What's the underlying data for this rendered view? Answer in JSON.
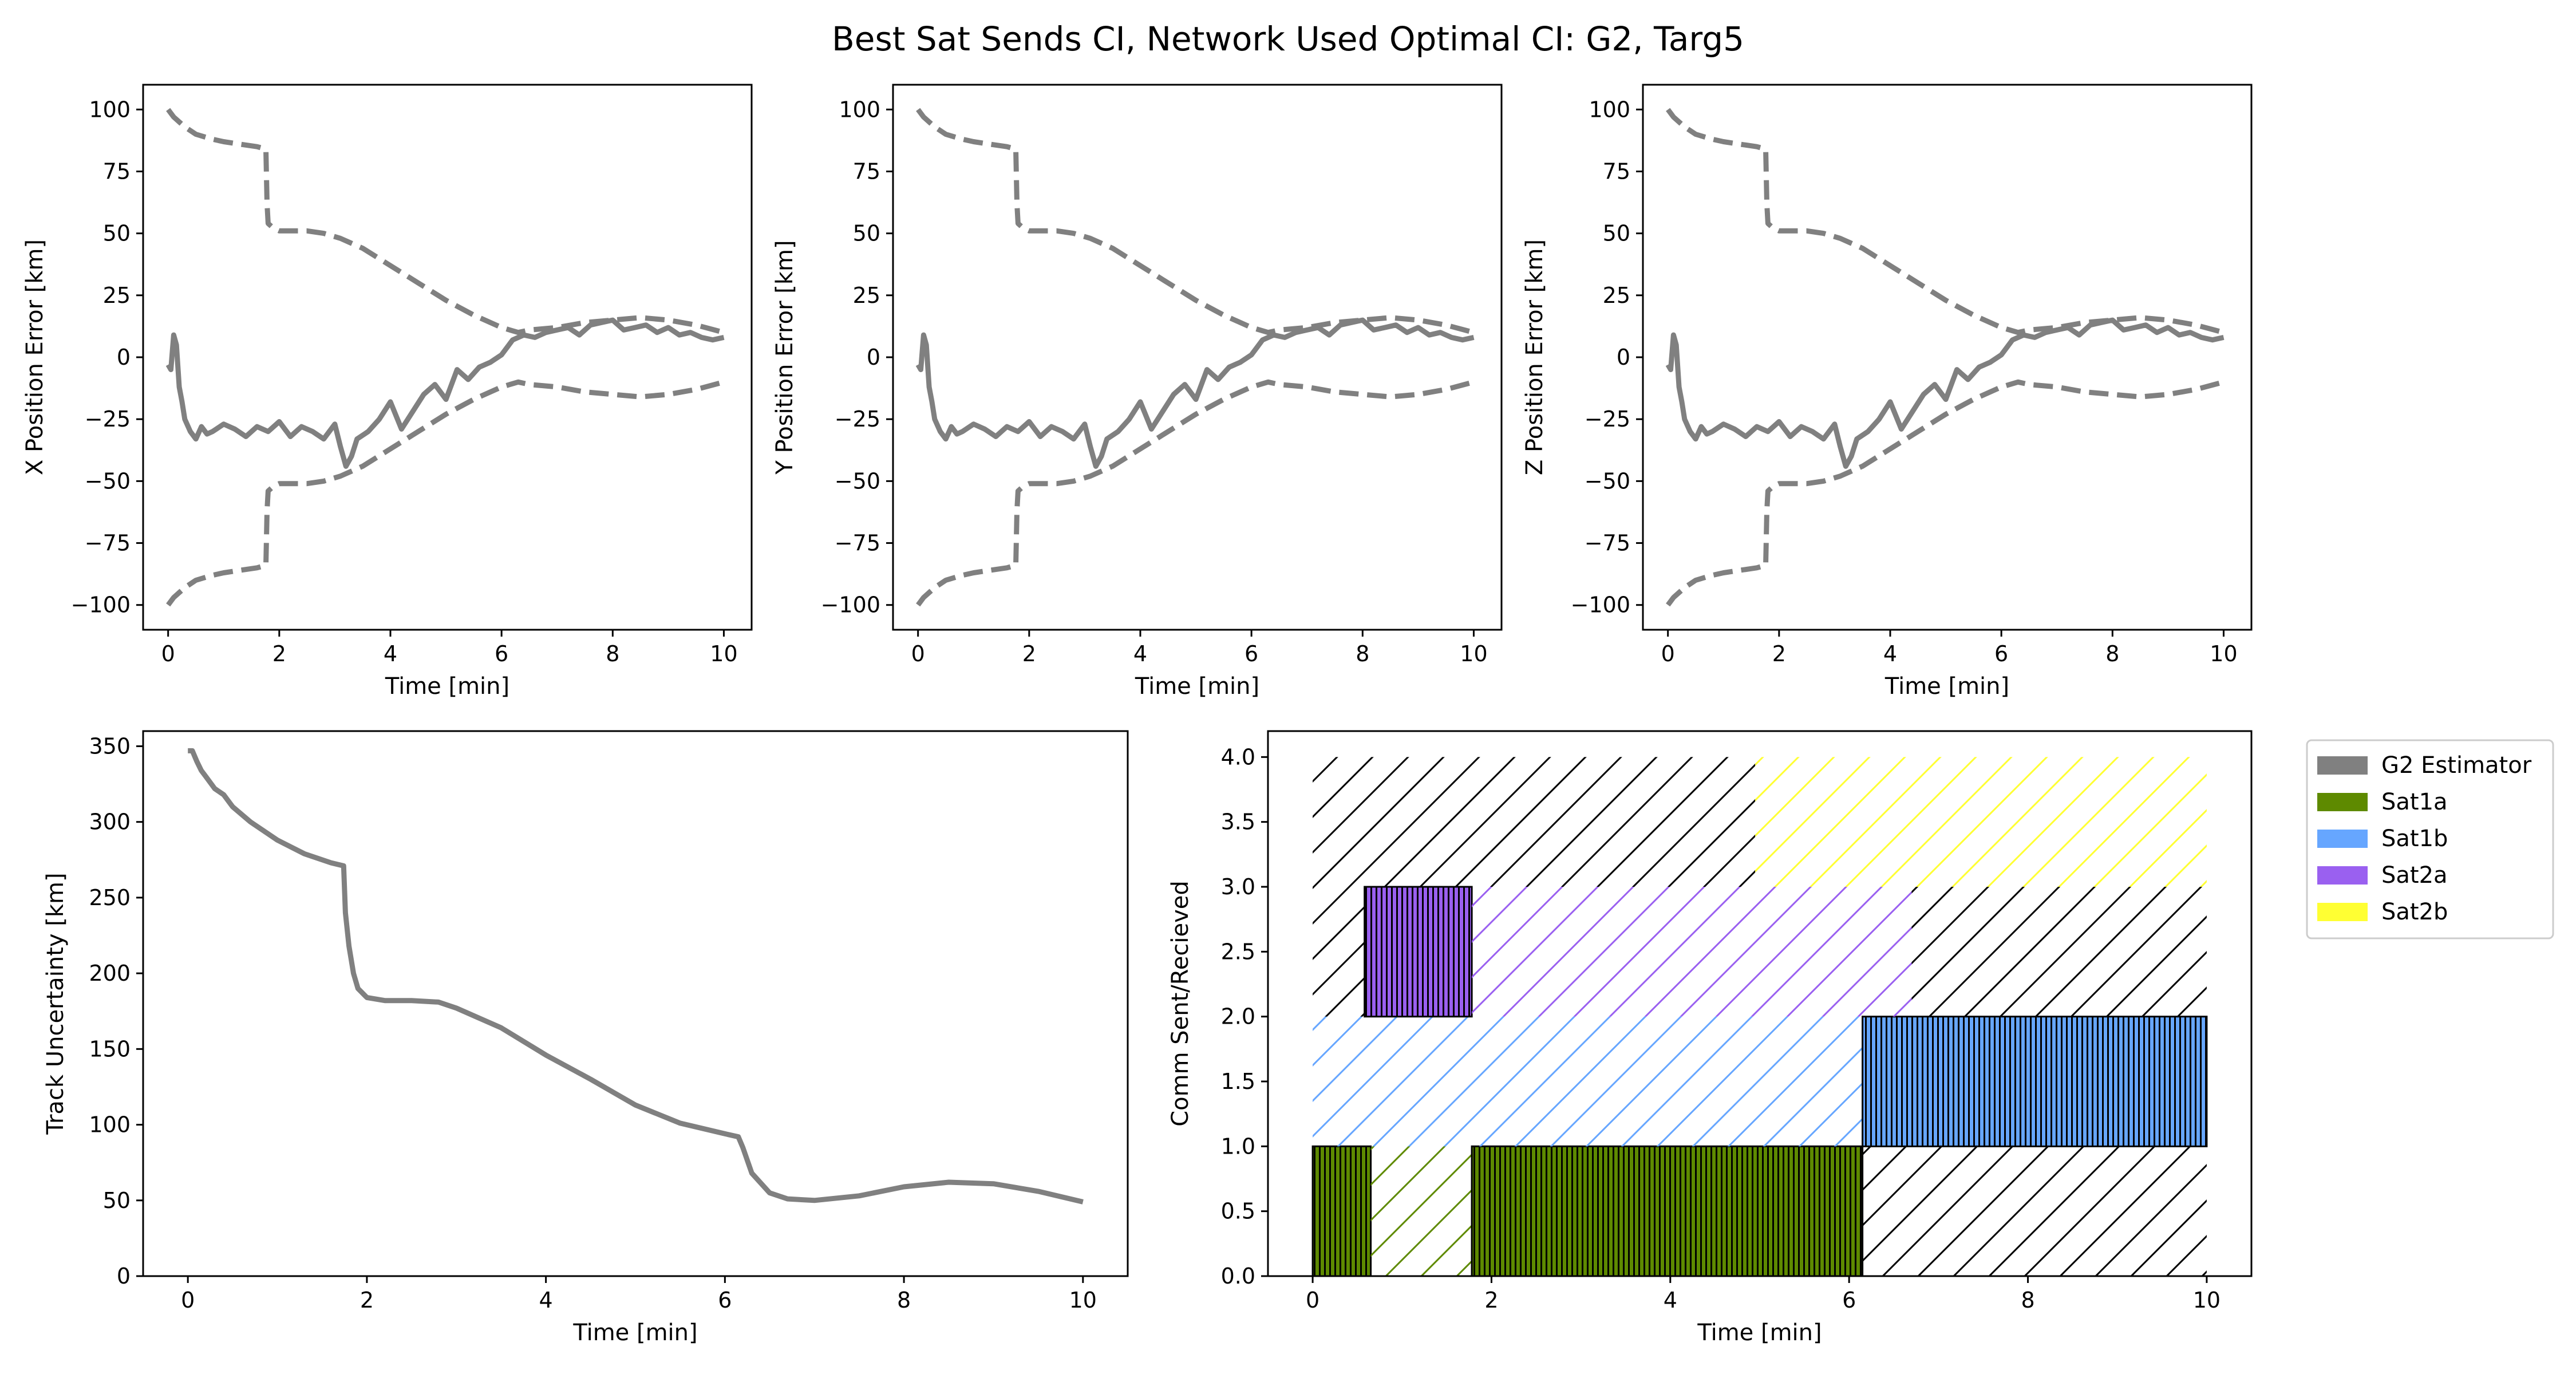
{
  "suptitle": "Best Sat Sends CI, Network Used Optimal CI: G2, Targ5",
  "colors": {
    "estimator": "#808080",
    "Sat1a": "#5e8a00",
    "Sat1b": "#66a6ff",
    "Sat2a": "#9a60f0",
    "Sat2b": "#ffff33",
    "hatch": "#000000"
  },
  "chart_data": [
    {
      "id": "x-error",
      "type": "line",
      "title": "",
      "xlabel": "Time [min]",
      "ylabel": "X Position Error [km]",
      "xlim": [
        -0.45,
        10.5
      ],
      "ylim": [
        -110,
        110
      ],
      "xticks": [
        0,
        2,
        4,
        6,
        8,
        10
      ],
      "yticks": [
        -100,
        -75,
        -50,
        -25,
        0,
        25,
        50,
        75,
        100
      ],
      "series": [
        {
          "style": "solid",
          "x": [
            0,
            0.05,
            0.1,
            0.15,
            0.2,
            0.25,
            0.3,
            0.4,
            0.5,
            0.6,
            0.7,
            0.8,
            1.0,
            1.2,
            1.4,
            1.6,
            1.8,
            2.0,
            2.2,
            2.4,
            2.6,
            2.8,
            3.0,
            3.1,
            3.2,
            3.3,
            3.4,
            3.6,
            3.8,
            4.0,
            4.2,
            4.4,
            4.6,
            4.8,
            5.0,
            5.2,
            5.4,
            5.6,
            5.8,
            6.0,
            6.2,
            6.4,
            6.6,
            6.8,
            7.0,
            7.2,
            7.4,
            7.6,
            7.8,
            8.0,
            8.2,
            8.4,
            8.6,
            8.8,
            9.0,
            9.2,
            9.4,
            9.6,
            9.8,
            10.0
          ],
          "y": [
            -3,
            -5,
            9,
            5,
            -12,
            -18,
            -25,
            -30,
            -33,
            -28,
            -31,
            -30,
            -27,
            -29,
            -32,
            -28,
            -30,
            -26,
            -32,
            -28,
            -30,
            -33,
            -27,
            -36,
            -44,
            -40,
            -33,
            -30,
            -25,
            -18,
            -29,
            -22,
            -15,
            -11,
            -17,
            -5,
            -9,
            -4,
            -2,
            1,
            7,
            9,
            8,
            10,
            11,
            12,
            9,
            13,
            14,
            15,
            11,
            12,
            13,
            10,
            12,
            9,
            10,
            8,
            7,
            8
          ]
        },
        {
          "style": "dashed",
          "x": [
            0,
            0.1,
            0.3,
            0.5,
            0.8,
            1.0,
            1.3,
            1.6,
            1.76,
            1.78,
            1.8,
            1.9,
            2.0,
            2.2,
            2.5,
            2.8,
            3.1,
            3.5,
            4.0,
            4.5,
            5.0,
            5.5,
            6.0,
            6.3,
            6.5,
            7.0,
            7.5,
            8.0,
            8.5,
            9.0,
            9.5,
            10.0
          ],
          "y": [
            100,
            97,
            93,
            90,
            88,
            87,
            86,
            85,
            84,
            62,
            54,
            52,
            51,
            51,
            51,
            50,
            48,
            44,
            37,
            30,
            23,
            17,
            12,
            10,
            11,
            12,
            14,
            15,
            16,
            15,
            13,
            10
          ]
        },
        {
          "style": "dashed",
          "x": [
            0,
            0.1,
            0.3,
            0.5,
            0.8,
            1.0,
            1.3,
            1.6,
            1.76,
            1.78,
            1.8,
            1.9,
            2.0,
            2.2,
            2.5,
            2.8,
            3.1,
            3.5,
            4.0,
            4.5,
            5.0,
            5.5,
            6.0,
            6.3,
            6.5,
            7.0,
            7.5,
            8.0,
            8.5,
            9.0,
            9.5,
            10.0
          ],
          "y": [
            -100,
            -97,
            -93,
            -90,
            -88,
            -87,
            -86,
            -85,
            -84,
            -62,
            -54,
            -52,
            -51,
            -51,
            -51,
            -50,
            -48,
            -44,
            -37,
            -30,
            -23,
            -17,
            -12,
            -10,
            -11,
            -12,
            -14,
            -15,
            -16,
            -15,
            -13,
            -10
          ]
        }
      ]
    },
    {
      "id": "y-error",
      "type": "line",
      "title": "",
      "xlabel": "Time [min]",
      "ylabel": "Y Position Error [km]",
      "xlim": [
        -0.45,
        10.5
      ],
      "ylim": [
        -110,
        110
      ],
      "xticks": [
        0,
        2,
        4,
        6,
        8,
        10
      ],
      "yticks": [
        -100,
        -75,
        -50,
        -25,
        0,
        25,
        50,
        75,
        100
      ],
      "series": [
        {
          "style": "solid",
          "x": [
            0,
            0.05,
            0.1,
            0.15,
            0.2,
            0.25,
            0.3,
            0.4,
            0.5,
            0.6,
            0.7,
            0.8,
            1.0,
            1.2,
            1.4,
            1.6,
            1.8,
            2.0,
            2.2,
            2.4,
            2.6,
            2.8,
            3.0,
            3.1,
            3.2,
            3.3,
            3.4,
            3.6,
            3.8,
            4.0,
            4.2,
            4.4,
            4.6,
            4.8,
            5.0,
            5.2,
            5.4,
            5.6,
            5.8,
            6.0,
            6.2,
            6.4,
            6.6,
            6.8,
            7.0,
            7.2,
            7.4,
            7.6,
            7.8,
            8.0,
            8.2,
            8.4,
            8.6,
            8.8,
            9.0,
            9.2,
            9.4,
            9.6,
            9.8,
            10.0
          ],
          "y": [
            -3,
            -5,
            9,
            5,
            -12,
            -18,
            -25,
            -30,
            -33,
            -28,
            -31,
            -30,
            -27,
            -29,
            -32,
            -28,
            -30,
            -26,
            -32,
            -28,
            -30,
            -33,
            -27,
            -36,
            -44,
            -40,
            -33,
            -30,
            -25,
            -18,
            -29,
            -22,
            -15,
            -11,
            -17,
            -5,
            -9,
            -4,
            -2,
            1,
            7,
            9,
            8,
            10,
            11,
            12,
            9,
            13,
            14,
            15,
            11,
            12,
            13,
            10,
            12,
            9,
            10,
            8,
            7,
            8
          ]
        },
        {
          "style": "dashed",
          "x": [
            0,
            0.1,
            0.3,
            0.5,
            0.8,
            1.0,
            1.3,
            1.6,
            1.76,
            1.78,
            1.8,
            1.9,
            2.0,
            2.2,
            2.5,
            2.8,
            3.1,
            3.5,
            4.0,
            4.5,
            5.0,
            5.5,
            6.0,
            6.3,
            6.5,
            7.0,
            7.5,
            8.0,
            8.5,
            9.0,
            9.5,
            10.0
          ],
          "y": [
            100,
            97,
            93,
            90,
            88,
            87,
            86,
            85,
            84,
            62,
            54,
            52,
            51,
            51,
            51,
            50,
            48,
            44,
            37,
            30,
            23,
            17,
            12,
            10,
            11,
            12,
            14,
            15,
            16,
            15,
            13,
            10
          ]
        },
        {
          "style": "dashed",
          "x": [
            0,
            0.1,
            0.3,
            0.5,
            0.8,
            1.0,
            1.3,
            1.6,
            1.76,
            1.78,
            1.8,
            1.9,
            2.0,
            2.2,
            2.5,
            2.8,
            3.1,
            3.5,
            4.0,
            4.5,
            5.0,
            5.5,
            6.0,
            6.3,
            6.5,
            7.0,
            7.5,
            8.0,
            8.5,
            9.0,
            9.5,
            10.0
          ],
          "y": [
            -100,
            -97,
            -93,
            -90,
            -88,
            -87,
            -86,
            -85,
            -84,
            -62,
            -54,
            -52,
            -51,
            -51,
            -51,
            -50,
            -48,
            -44,
            -37,
            -30,
            -23,
            -17,
            -12,
            -10,
            -11,
            -12,
            -14,
            -15,
            -16,
            -15,
            -13,
            -10
          ]
        }
      ]
    },
    {
      "id": "z-error",
      "type": "line",
      "title": "",
      "xlabel": "Time [min]",
      "ylabel": "Z Position Error [km]",
      "xlim": [
        -0.45,
        10.5
      ],
      "ylim": [
        -110,
        110
      ],
      "xticks": [
        0,
        2,
        4,
        6,
        8,
        10
      ],
      "yticks": [
        -100,
        -75,
        -50,
        -25,
        0,
        25,
        50,
        75,
        100
      ],
      "series": [
        {
          "style": "solid",
          "x": [
            0,
            0.05,
            0.1,
            0.15,
            0.2,
            0.25,
            0.3,
            0.4,
            0.5,
            0.6,
            0.7,
            0.8,
            1.0,
            1.2,
            1.4,
            1.6,
            1.8,
            2.0,
            2.2,
            2.4,
            2.6,
            2.8,
            3.0,
            3.1,
            3.2,
            3.3,
            3.4,
            3.6,
            3.8,
            4.0,
            4.2,
            4.4,
            4.6,
            4.8,
            5.0,
            5.2,
            5.4,
            5.6,
            5.8,
            6.0,
            6.2,
            6.4,
            6.6,
            6.8,
            7.0,
            7.2,
            7.4,
            7.6,
            7.8,
            8.0,
            8.2,
            8.4,
            8.6,
            8.8,
            9.0,
            9.2,
            9.4,
            9.6,
            9.8,
            10.0
          ],
          "y": [
            -3,
            -5,
            9,
            5,
            -12,
            -18,
            -25,
            -30,
            -33,
            -28,
            -31,
            -30,
            -27,
            -29,
            -32,
            -28,
            -30,
            -26,
            -32,
            -28,
            -30,
            -33,
            -27,
            -36,
            -44,
            -40,
            -33,
            -30,
            -25,
            -18,
            -29,
            -22,
            -15,
            -11,
            -17,
            -5,
            -9,
            -4,
            -2,
            1,
            7,
            9,
            8,
            10,
            11,
            12,
            9,
            13,
            14,
            15,
            11,
            12,
            13,
            10,
            12,
            9,
            10,
            8,
            7,
            8
          ]
        },
        {
          "style": "dashed",
          "x": [
            0,
            0.1,
            0.3,
            0.5,
            0.8,
            1.0,
            1.3,
            1.6,
            1.76,
            1.78,
            1.8,
            1.9,
            2.0,
            2.2,
            2.5,
            2.8,
            3.1,
            3.5,
            4.0,
            4.5,
            5.0,
            5.5,
            6.0,
            6.3,
            6.5,
            7.0,
            7.5,
            8.0,
            8.5,
            9.0,
            9.5,
            10.0
          ],
          "y": [
            100,
            97,
            93,
            90,
            88,
            87,
            86,
            85,
            84,
            62,
            54,
            52,
            51,
            51,
            51,
            50,
            48,
            44,
            37,
            30,
            23,
            17,
            12,
            10,
            11,
            12,
            14,
            15,
            16,
            15,
            13,
            10
          ]
        },
        {
          "style": "dashed",
          "x": [
            0,
            0.1,
            0.3,
            0.5,
            0.8,
            1.0,
            1.3,
            1.6,
            1.76,
            1.78,
            1.8,
            1.9,
            2.0,
            2.2,
            2.5,
            2.8,
            3.1,
            3.5,
            4.0,
            4.5,
            5.0,
            5.5,
            6.0,
            6.3,
            6.5,
            7.0,
            7.5,
            8.0,
            8.5,
            9.0,
            9.5,
            10.0
          ],
          "y": [
            -100,
            -97,
            -93,
            -90,
            -88,
            -87,
            -86,
            -85,
            -84,
            -62,
            -54,
            -52,
            -51,
            -51,
            -51,
            -50,
            -48,
            -44,
            -37,
            -30,
            -23,
            -17,
            -12,
            -10,
            -11,
            -12,
            -14,
            -15,
            -16,
            -15,
            -13,
            -10
          ]
        }
      ]
    },
    {
      "id": "track-uncertainty",
      "type": "line",
      "title": "",
      "xlabel": "Time [min]",
      "ylabel": "Track Uncertainty [km]",
      "xlim": [
        -0.5,
        10.5
      ],
      "ylim": [
        0,
        360
      ],
      "xticks": [
        0,
        2,
        4,
        6,
        8,
        10
      ],
      "yticks": [
        0,
        50,
        100,
        150,
        200,
        250,
        300,
        350
      ],
      "series": [
        {
          "style": "solid",
          "x": [
            0,
            0.05,
            0.1,
            0.15,
            0.2,
            0.3,
            0.4,
            0.5,
            0.7,
            1.0,
            1.3,
            1.6,
            1.74,
            1.76,
            1.8,
            1.85,
            1.9,
            2.0,
            2.2,
            2.5,
            2.8,
            3.0,
            3.5,
            4.0,
            4.5,
            5.0,
            5.5,
            6.0,
            6.15,
            6.2,
            6.3,
            6.5,
            6.7,
            7.0,
            7.5,
            8.0,
            8.5,
            9.0,
            9.5,
            10.0
          ],
          "y": [
            347,
            347,
            340,
            334,
            330,
            322,
            318,
            310,
            300,
            288,
            279,
            273,
            271,
            240,
            218,
            200,
            190,
            184,
            182,
            182,
            181,
            177,
            164,
            146,
            130,
            113,
            101,
            94,
            92,
            85,
            68,
            55,
            51,
            50,
            53,
            59,
            62,
            61,
            56,
            49
          ]
        }
      ]
    },
    {
      "id": "comm",
      "type": "bar",
      "title": "",
      "xlabel": "Time [min]",
      "ylabel": "Comm Sent/Recieved",
      "xlim": [
        -0.5,
        10.5
      ],
      "ylim": [
        0,
        4.2
      ],
      "xticks": [
        0,
        2,
        4,
        6,
        8,
        10
      ],
      "yticks": [
        0.0,
        0.5,
        1.0,
        1.5,
        2.0,
        2.5,
        3.0,
        3.5,
        4.0
      ],
      "legend_position": "outside-right-top",
      "legend": [
        "G2 Estimator",
        "Sat1a",
        "Sat1b",
        "Sat2a",
        "Sat2b"
      ],
      "segments": [
        {
          "series": "Sat1a",
          "level": 0,
          "start": 0.0,
          "end": 0.65,
          "kind": "sent"
        },
        {
          "series": "Sat1a",
          "level": 0,
          "start": 0.65,
          "end": 1.78,
          "kind": "hatched"
        },
        {
          "series": "Sat1a",
          "level": 0,
          "start": 1.78,
          "end": 6.15,
          "kind": "sent"
        },
        {
          "series": "none",
          "level": 0,
          "start": 6.15,
          "end": 10.0,
          "kind": "hatched"
        },
        {
          "series": "Sat1b",
          "level": 1,
          "start": 0.0,
          "end": 6.15,
          "kind": "hatched"
        },
        {
          "series": "Sat1b",
          "level": 1,
          "start": 6.15,
          "end": 10.0,
          "kind": "sent"
        },
        {
          "series": "none",
          "level": 2,
          "start": 0.0,
          "end": 0.58,
          "kind": "hatched"
        },
        {
          "series": "Sat2a",
          "level": 2,
          "start": 0.58,
          "end": 1.78,
          "kind": "sent"
        },
        {
          "series": "Sat2a",
          "level": 2,
          "start": 1.78,
          "end": 6.7,
          "kind": "hatched"
        },
        {
          "series": "none",
          "level": 2,
          "start": 6.7,
          "end": 10.0,
          "kind": "hatched"
        },
        {
          "series": "none",
          "level": 3,
          "start": 0.0,
          "end": 4.95,
          "kind": "hatched"
        },
        {
          "series": "Sat2b",
          "level": 3,
          "start": 4.95,
          "end": 10.0,
          "kind": "hatched"
        }
      ]
    }
  ]
}
